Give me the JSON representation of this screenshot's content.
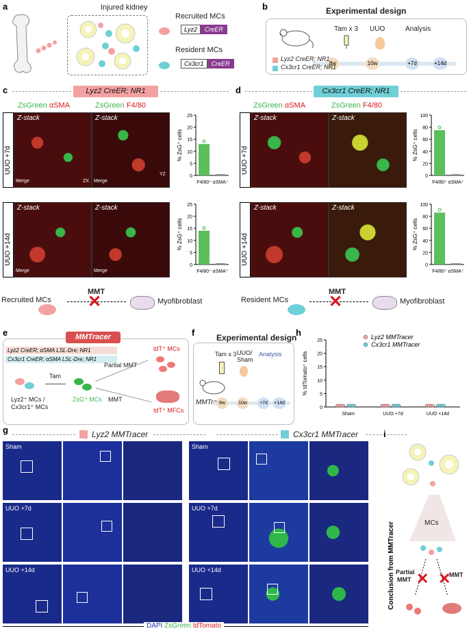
{
  "panels": {
    "a": {
      "label": "a",
      "title": "Injured kidney",
      "recruited": "Recruited MCs",
      "recruited_gene": "Lyz2",
      "recruited_cre": "CreER",
      "resident": "Resident MCs",
      "resident_gene": "Cx3cr1",
      "resident_cre": "CreER"
    },
    "b": {
      "label": "b",
      "title": "Experimental design",
      "tam": "Tam x 3",
      "uuo": "UUO",
      "analysis": "Analysis",
      "legend1": "Lyz2 CreER; NR1",
      "legend2": "Cx3cr1 CreER; NR1",
      "times": [
        "8w",
        "10w",
        "+7d",
        "+14d"
      ]
    },
    "c": {
      "label": "c",
      "banner": "Lyz2 CreER; NR1",
      "col1": "ZsGreen",
      "col1b": "αSMA",
      "col2": "ZsGreen",
      "col2b": "F4/80",
      "zstack": "Z-stack",
      "row1": "UUO +7d",
      "row2": "UUO +14d",
      "merge": "Merge",
      "yz": "YZ",
      "zx": "ZX",
      "cells_label": "Recruited MCs",
      "mmt": "MMT",
      "myo": "Myofibroblast"
    },
    "d": {
      "label": "d",
      "banner": "Cx3cr1 CreER; NR1",
      "col1": "ZsGreen",
      "col1b": "αSMA",
      "col2": "ZsGreen",
      "col2b": "F4/80",
      "zstack": "Z-stack",
      "row1": "UUO +7d",
      "row2": "UUO +14d",
      "cells_label": "Resident MCs",
      "mmt": "MMT",
      "myo": "Myofibroblast"
    },
    "e": {
      "label": "e",
      "banner": "MMTracer",
      "line1": "Lyz2 CreER; αSMA LSL-Dre; NR1",
      "line2": "Cx3cr1 CreER; αSMA LSL-Dre; NR1",
      "tam": "Tam",
      "partial": "Partial MMT",
      "mmt": "MMT",
      "source": "Lyz2⁺ MCs /",
      "source2": "Cx3cr1⁺ MCs",
      "zsg": "ZsG⁺ MCs",
      "tdt_mc": "tdT⁺ MCs",
      "tdt_mfc": "tdT⁺ MFCs"
    },
    "f": {
      "label": "f",
      "title": "Experimental design",
      "tam": "Tam x 3",
      "uuo": "UUO/",
      "sham": "Sham",
      "analysis": "Analysis",
      "mouse": "MMTracer",
      "times": [
        "8w",
        "10w",
        "+7d",
        "+14d"
      ]
    },
    "g": {
      "label": "g",
      "left_title": "Lyz2 MMTracer",
      "right_title": "Cx3cr1 MMTracer",
      "rows": [
        "Sham",
        "UUO +7d",
        "UUO +14d"
      ],
      "footer_dapi": "DAPI",
      "footer_zs": "ZsGreen",
      "footer_td": "tdTomato"
    },
    "h": {
      "label": "h"
    },
    "i": {
      "label": "i",
      "mcs": "MCs",
      "conclusion": "Conclusion from MMTracer",
      "partial": "Partial",
      "partial2": "MMT",
      "mmt": "MMT"
    }
  },
  "colors": {
    "lyz2": "#f4a1a1",
    "cx3cr1": "#6fcfd6",
    "green": "#3ab54a",
    "red": "#d7191c",
    "purple": "#8a3b8f"
  },
  "chart_data": [
    {
      "type": "bar",
      "panel": "c-top",
      "categories": [
        "F4/80⁺",
        "αSMA⁺"
      ],
      "values": [
        13,
        0
      ],
      "ylabel": "% ZsG⁺ cells",
      "ylim": [
        0,
        25
      ],
      "ticks": [
        0,
        5,
        10,
        15,
        20,
        25
      ]
    },
    {
      "type": "bar",
      "panel": "c-bottom",
      "categories": [
        "F4/80⁺",
        "αSMA⁺"
      ],
      "values": [
        14,
        0
      ],
      "ylabel": "% ZsG⁺ cells",
      "ylim": [
        0,
        25
      ],
      "ticks": [
        0,
        5,
        10,
        15,
        20,
        25
      ]
    },
    {
      "type": "bar",
      "panel": "d-top",
      "categories": [
        "F4/80⁺",
        "αSMA⁺"
      ],
      "values": [
        75,
        0
      ],
      "ylabel": "% ZsG⁺ cells",
      "ylim": [
        0,
        100
      ],
      "ticks": [
        0,
        20,
        40,
        60,
        80,
        100
      ]
    },
    {
      "type": "bar",
      "panel": "d-bottom",
      "categories": [
        "F4/80⁺",
        "αSMA⁺"
      ],
      "values": [
        86,
        0
      ],
      "ylabel": "% ZsG⁺ cells",
      "ylim": [
        0,
        100
      ],
      "ticks": [
        0,
        20,
        40,
        60,
        80,
        100
      ]
    },
    {
      "type": "scatter",
      "panel": "h",
      "categories": [
        "Sham",
        "UUO +7d",
        "UUO +14d"
      ],
      "series": [
        {
          "name": "Lyz2 MMTracer",
          "values": [
            0,
            0,
            0
          ]
        },
        {
          "name": "Cx3cr1 MMTracer",
          "values": [
            0,
            0,
            0
          ]
        }
      ],
      "ylabel": "% tdTomato⁺ cells",
      "ylim": [
        0,
        25
      ],
      "ticks": [
        0,
        5,
        10,
        15,
        20,
        25
      ]
    }
  ]
}
